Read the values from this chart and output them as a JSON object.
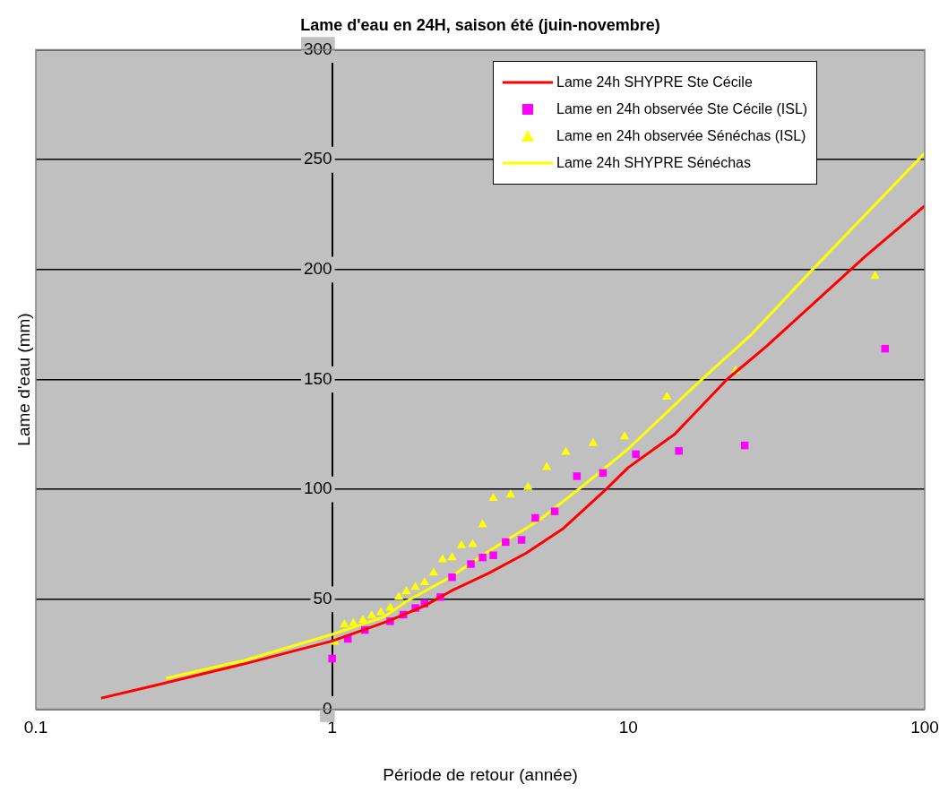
{
  "chart_data": {
    "type": "line",
    "title": "Lame d'eau en 24H, saison été (juin-novembre)",
    "xlabel": "Période de retour (année)",
    "ylabel": "Lame d'eau (mm)",
    "log": "x",
    "xlim": [
      0.1,
      100
    ],
    "xticks": [
      0.1,
      1,
      10,
      100
    ],
    "ylim": [
      0,
      300
    ],
    "yticks": [
      0,
      50,
      100,
      150,
      200,
      250,
      300
    ],
    "grid": "y",
    "legend": "top right",
    "series": [
      {
        "name": "Lame 24h  SHYPRE Ste Cécile",
        "marker": "none",
        "color": "#ff0000",
        "x": [
          0.166,
          0.256,
          0.52,
          1,
          1.54,
          2.05,
          2.54,
          3.39,
          4.52,
          6,
          8.4,
          10,
          14.3,
          21.5,
          29.2,
          63,
          100
        ],
        "values": [
          5,
          11,
          21,
          31,
          40,
          47,
          54,
          62,
          71,
          82,
          100,
          110,
          125,
          150,
          165,
          206,
          229
        ]
      },
      {
        "name": "Lame en 24h observée Ste Cécile (ISL)",
        "type": "scatter",
        "marker": "square",
        "color": "#ff00ff",
        "x": [
          1,
          1.13,
          1.29,
          1.57,
          1.74,
          1.91,
          2.05,
          2.32,
          2.54,
          2.94,
          3.22,
          3.5,
          3.85,
          4.36,
          4.85,
          5.64,
          6.7,
          8.2,
          10.6,
          14.8,
          24.7,
          73.5
        ],
        "values": [
          23,
          32,
          36,
          40,
          43,
          46,
          48,
          51,
          60,
          66,
          69,
          70,
          76,
          77,
          87,
          90,
          106,
          107.5,
          116,
          117.5,
          120,
          164
        ]
      },
      {
        "name": "Lame en 24h observée Sénéchas (ISL)",
        "type": "scatter",
        "marker": "triangle",
        "color": "#ffff00",
        "x": [
          1.02,
          1.1,
          1.18,
          1.27,
          1.36,
          1.46,
          1.57,
          1.68,
          1.78,
          1.91,
          2.05,
          2.2,
          2.36,
          2.54,
          2.73,
          2.98,
          3.22,
          3.5,
          4,
          4.58,
          5.3,
          6.15,
          7.6,
          9.7,
          13.5,
          23,
          68
        ],
        "values": [
          30.5,
          38.5,
          39,
          40.5,
          42.5,
          44,
          46,
          51,
          53.5,
          55.5,
          57.7,
          62,
          68,
          69,
          74.5,
          75,
          84,
          96,
          97.5,
          101,
          110,
          117,
          121,
          124,
          142,
          154,
          197
        ]
      },
      {
        "name": "Lame 24h  SHYPRE Sénéchas",
        "marker": "none",
        "color": "#ffff00",
        "x": [
          0.275,
          0.5,
          1,
          1.5,
          1.78,
          2.5,
          3.39,
          5,
          6.94,
          9.9,
          18,
          25.8,
          41.8,
          100
        ],
        "values": [
          14,
          22,
          34,
          42,
          49,
          60,
          72,
          86,
          101,
          118,
          151,
          170,
          200,
          253
        ]
      }
    ]
  }
}
